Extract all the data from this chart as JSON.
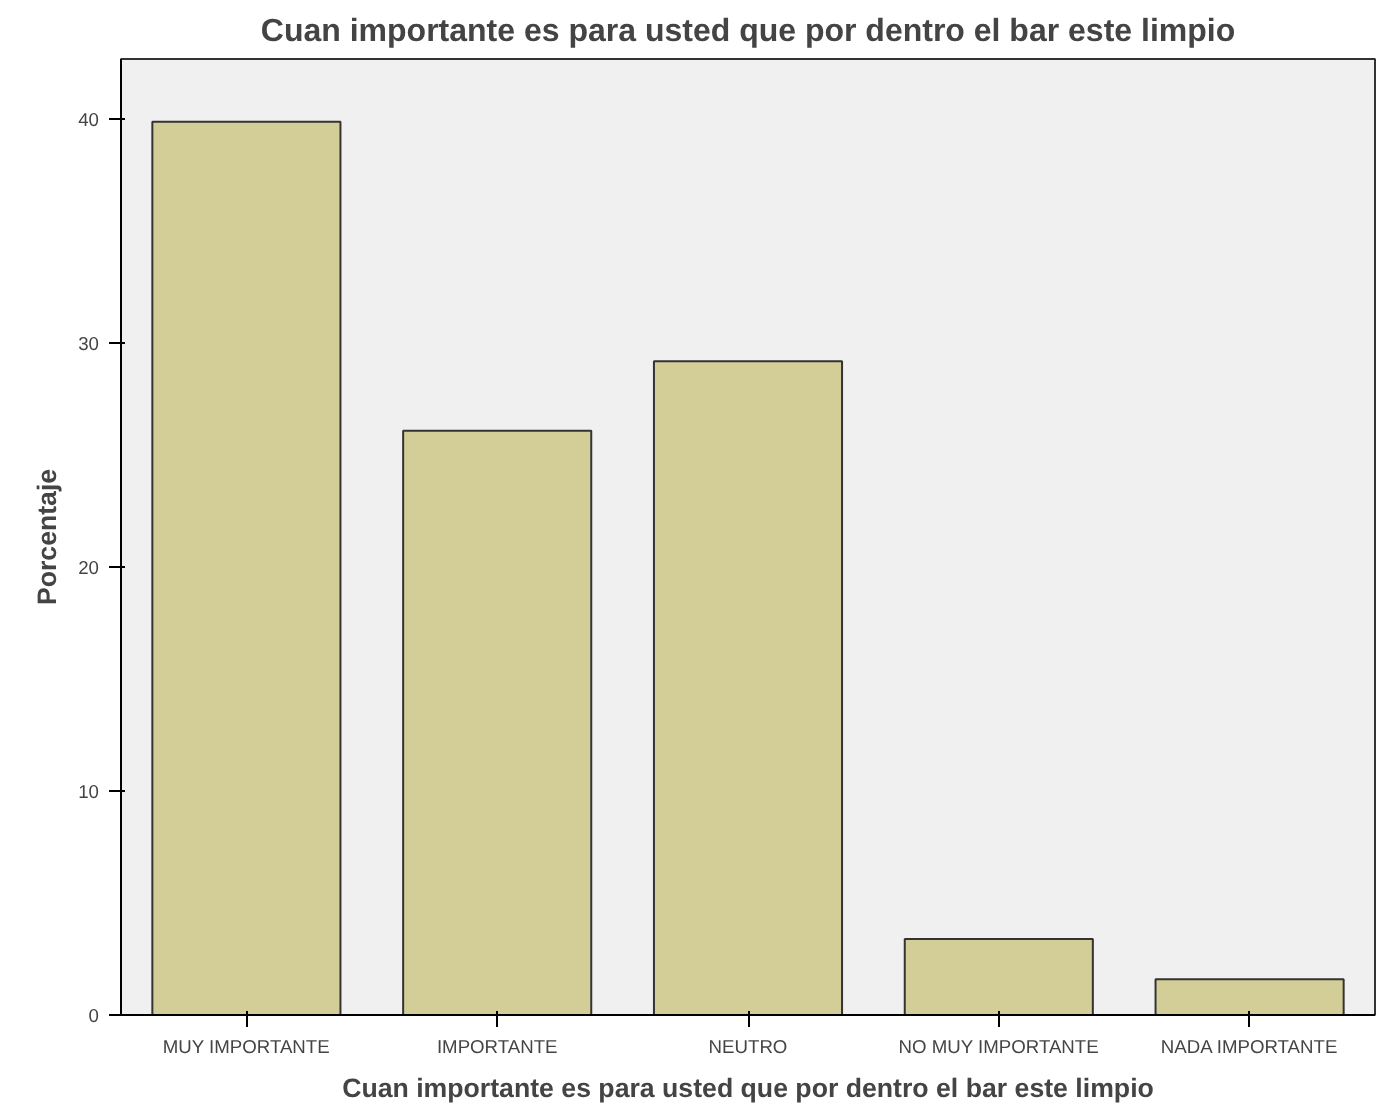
{
  "chart_data": {
    "type": "bar",
    "title": "Cuan importante es para usted que por dentro el bar este limpio",
    "xlabel": "Cuan importante es para usted que por dentro el bar este limpio",
    "ylabel": "Porcentaje",
    "categories": [
      "MUY IMPORTANTE",
      "IMPORTANTE",
      "NEUTRO",
      "NO MUY IMPORTANTE",
      "NADA IMPORTANTE"
    ],
    "values": [
      39.9,
      26.1,
      29.2,
      3.4,
      1.6
    ],
    "color": "#d3ce97",
    "ylim": [
      0,
      42.7
    ],
    "yticks": [
      0,
      10,
      20,
      30,
      40
    ],
    "grid": false
  }
}
